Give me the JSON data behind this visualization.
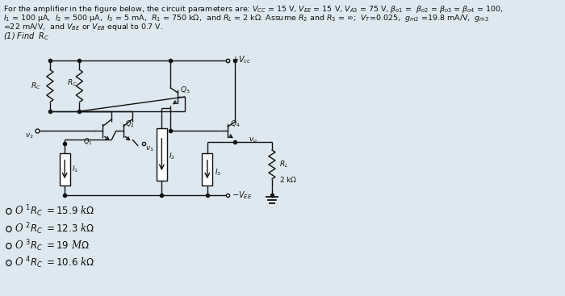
{
  "bg_color": "#dde8f0",
  "text_color": "#111111",
  "cc": "#111111",
  "header1": "For the amplifier in the figure below, the circuit parameters are: $V_{CC}$ = 15 V, $V_{EE}$ = 15 V, $V_{A3}$ = 75 V, $\\beta_{o1}$ =  $\\beta_{o2}$ = $\\beta_{o3}$ = $\\beta_{o4}$ = 100,",
  "header2": "$I_1$ = 100 µA,  $I_2$ = 500 µA,  $I_3$ = 5 mA,  $R_1$ = 750 kΩ,  and $R_L$ = 2 kΩ. Assume $R_2$ and $R_3$ = ∞;  $V_T$=0.025,  $g_{m2}$ =19.8 mA/V,  $g_{m3}$",
  "header3": "=22 mA/V,  and $V_{BE}$ or $V_{EB}$ equal to 0.7 V.",
  "find": "(1) Find  $R_C$",
  "opts": [
    "O 1. $R_C$ = 15.9 kΩ",
    "O 2. $R_C$ = 12.3 kΩ",
    "O 3. $R_C$ = 19 MΩ",
    "O 4. $R_C$ = 10.6 kΩ"
  ]
}
